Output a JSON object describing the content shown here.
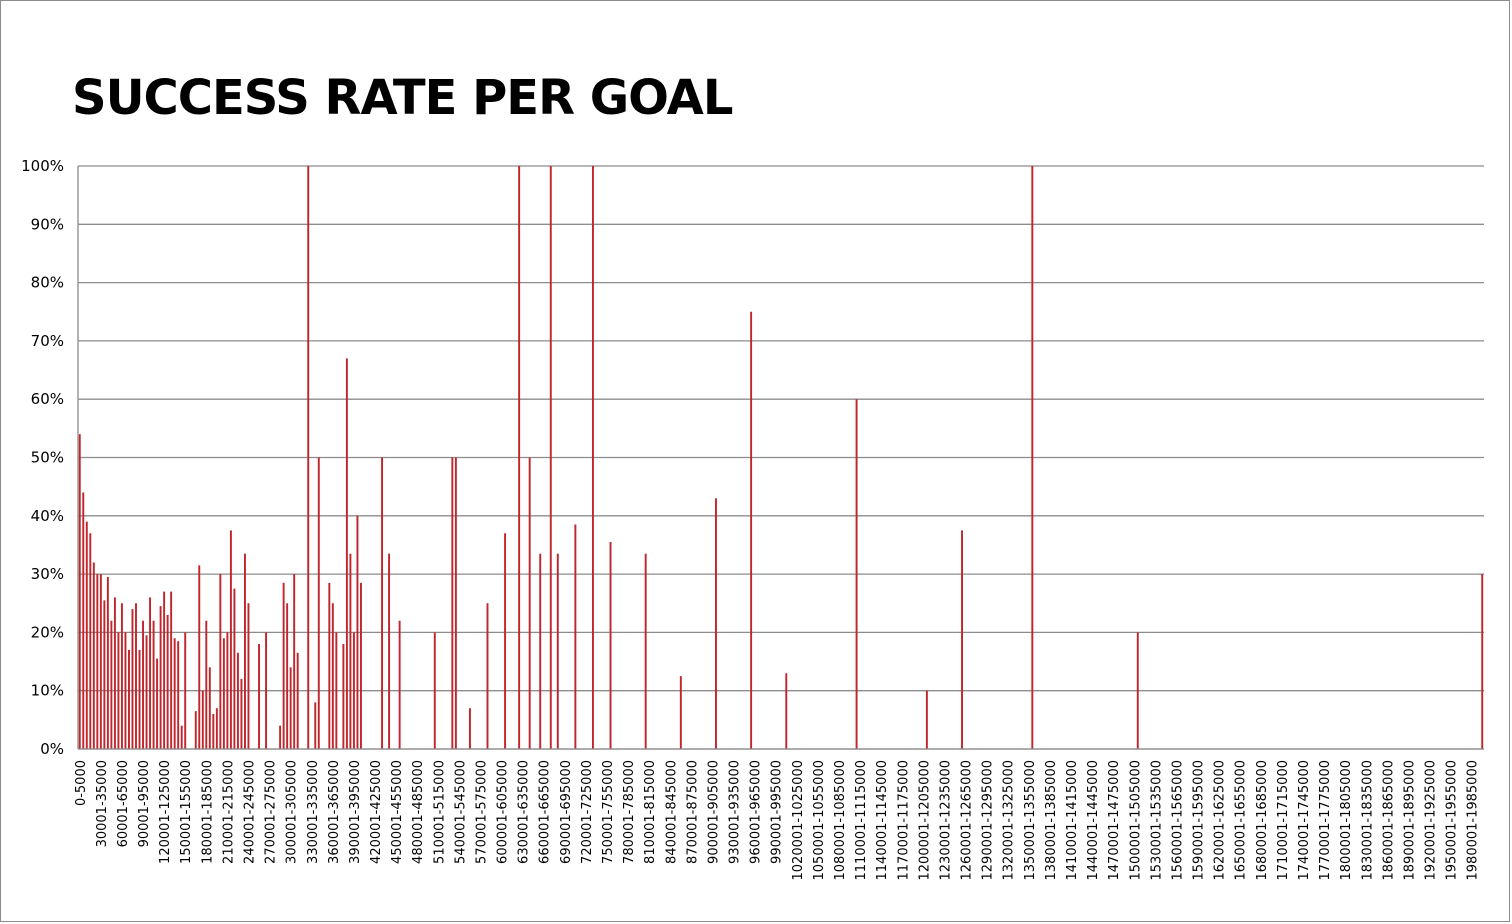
{
  "chart_data": {
    "type": "bar",
    "title": "SUCCESS RATE PER GOAL",
    "xlabel": "",
    "ylabel": "",
    "ylim": [
      0,
      100
    ],
    "ytick_labels": [
      "0%",
      "10%",
      "20%",
      "30%",
      "40%",
      "50%",
      "60%",
      "70%",
      "80%",
      "90%",
      "100%"
    ],
    "grid": true,
    "bar_color": "#c0272d",
    "bin_size": 5000,
    "num_bins": 400,
    "first_category": "0-5000",
    "last_category": "1995001-2000000",
    "label_every": 6,
    "xtick_labels": [
      "0-5000",
      "30001-35000",
      "60001-65000",
      "90001-95000",
      "120001-125000",
      "150001-155000",
      "180001-185000",
      "210001-215000",
      "240001-245000",
      "270001-275000",
      "300001-305000",
      "330001-335000",
      "360001-365000",
      "390001-395000",
      "420001-425000",
      "450001-455000",
      "480001-485000",
      "510001-515000",
      "540001-545000",
      "570001-575000",
      "600001-605000",
      "630001-635000",
      "660001-665000",
      "690001-695000",
      "720001-725000",
      "750001-755000",
      "780001-785000",
      "810001-815000",
      "840001-845000",
      "870001-875000",
      "900001-905000",
      "930001-935000",
      "960001-965000",
      "990001-995000",
      "1020001-1025000",
      "1050001-1055000",
      "1080001-1085000",
      "1110001-1115000",
      "1140001-1145000",
      "1170001-1175000",
      "1200001-1205000",
      "1230001-1235000",
      "1260001-1265000",
      "1290001-1295000",
      "1320001-1325000",
      "1350001-1355000",
      "1380001-1385000",
      "1410001-1415000",
      "1440001-1445000",
      "1470001-1475000",
      "1500001-1505000",
      "1530001-1535000",
      "1560001-1565000",
      "1590001-1595000",
      "1620001-1625000",
      "1650001-1655000",
      "1680001-1685000",
      "1710001-1715000",
      "1740001-1745000",
      "1770001-1775000",
      "1800001-1805000",
      "1830001-1835000",
      "1860001-1865000",
      "1890001-1895000",
      "1920001-1925000",
      "1950001-1955000",
      "1980001-1985000"
    ],
    "values_nonzero": [
      [
        0,
        54
      ],
      [
        1,
        44
      ],
      [
        2,
        39
      ],
      [
        3,
        37
      ],
      [
        4,
        32
      ],
      [
        5,
        30
      ],
      [
        6,
        30
      ],
      [
        7,
        25.5
      ],
      [
        8,
        29.5
      ],
      [
        9,
        22
      ],
      [
        10,
        26
      ],
      [
        11,
        20
      ],
      [
        12,
        25
      ],
      [
        13,
        20
      ],
      [
        14,
        17
      ],
      [
        15,
        24
      ],
      [
        16,
        25
      ],
      [
        17,
        17
      ],
      [
        18,
        22
      ],
      [
        19,
        19.5
      ],
      [
        20,
        26
      ],
      [
        21,
        22
      ],
      [
        22,
        15.5
      ],
      [
        23,
        24.5
      ],
      [
        24,
        27
      ],
      [
        25,
        23
      ],
      [
        26,
        27
      ],
      [
        27,
        19
      ],
      [
        28,
        18.5
      ],
      [
        29,
        4
      ],
      [
        30,
        20
      ],
      [
        33,
        6.5
      ],
      [
        34,
        31.5
      ],
      [
        35,
        10
      ],
      [
        36,
        22
      ],
      [
        37,
        14
      ],
      [
        38,
        6
      ],
      [
        39,
        7
      ],
      [
        40,
        30
      ],
      [
        41,
        19
      ],
      [
        42,
        20
      ],
      [
        43,
        37.5
      ],
      [
        44,
        27.5
      ],
      [
        45,
        16.5
      ],
      [
        46,
        12
      ],
      [
        47,
        33.5
      ],
      [
        48,
        25
      ],
      [
        51,
        18
      ],
      [
        53,
        20
      ],
      [
        57,
        4
      ],
      [
        58,
        28.5
      ],
      [
        59,
        25
      ],
      [
        60,
        14
      ],
      [
        61,
        30
      ],
      [
        62,
        16.5
      ],
      [
        65,
        100
      ],
      [
        67,
        8
      ],
      [
        68,
        50
      ],
      [
        71,
        28.5
      ],
      [
        72,
        25
      ],
      [
        73,
        20
      ],
      [
        75,
        18
      ],
      [
        76,
        67
      ],
      [
        77,
        33.5
      ],
      [
        78,
        20
      ],
      [
        79,
        40
      ],
      [
        80,
        28.5
      ],
      [
        86,
        50
      ],
      [
        88,
        33.5
      ],
      [
        91,
        22
      ],
      [
        101,
        20
      ],
      [
        106,
        50
      ],
      [
        107,
        50
      ],
      [
        111,
        7
      ],
      [
        116,
        25
      ],
      [
        121,
        37
      ],
      [
        125,
        100
      ],
      [
        128,
        50
      ],
      [
        131,
        33.5
      ],
      [
        134,
        100
      ],
      [
        136,
        33.5
      ],
      [
        141,
        38.5
      ],
      [
        146,
        100
      ],
      [
        151,
        35.5
      ],
      [
        161,
        33.5
      ],
      [
        171,
        12.5
      ],
      [
        181,
        43
      ],
      [
        191,
        75
      ],
      [
        201,
        13
      ],
      [
        221,
        60
      ],
      [
        241,
        10
      ],
      [
        251,
        37.5
      ],
      [
        271,
        100
      ],
      [
        301,
        20
      ],
      [
        399,
        30
      ]
    ]
  }
}
